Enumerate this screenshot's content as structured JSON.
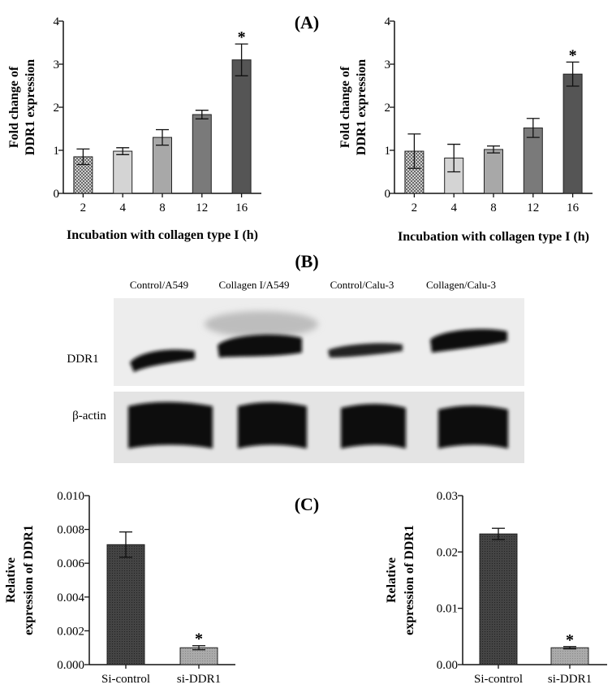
{
  "panels": {
    "A": "(A)",
    "B": "(B)",
    "C": "(C)"
  },
  "colors": {
    "bar_2h": "#9a9a9a",
    "bar_4h": "#d4d4d4",
    "bar_8h": "#a8a8a8",
    "bar_12h": "#7a7a7a",
    "bar_16h": "#555555",
    "si_control": "#3a3a3a",
    "si_ddr1": "#a6a6a6"
  },
  "western_blot": {
    "lanes": [
      "Control/A549",
      "Collagen I/A549",
      "Control/Calu-3",
      "Collagen/Calu-3"
    ],
    "rows": [
      "DDR1",
      "β-actin"
    ]
  },
  "chart_data": [
    {
      "id": "A-left",
      "type": "bar",
      "categories": [
        "2",
        "4",
        "8",
        "12",
        "16"
      ],
      "values": [
        0.85,
        0.98,
        1.3,
        1.83,
        3.1
      ],
      "errors": [
        0.18,
        0.08,
        0.18,
        0.1,
        0.37
      ],
      "significant": [
        false,
        false,
        false,
        false,
        true
      ],
      "significance_mark": "*",
      "xlabel": "Incubation with collagen type I (h)",
      "ylabel": [
        "Fold change of",
        "DDR1 expression"
      ],
      "ylim": [
        0,
        4
      ],
      "yticks": [
        0,
        1,
        2,
        3,
        4
      ],
      "ytick_labels": [
        "0",
        "1",
        "2",
        "3",
        "4"
      ],
      "bar_colors": [
        "#9a9a9a",
        "#d4d4d4",
        "#a8a8a8",
        "#7a7a7a",
        "#555555"
      ],
      "grid": false
    },
    {
      "id": "A-right",
      "type": "bar",
      "categories": [
        "2",
        "4",
        "8",
        "12",
        "16"
      ],
      "values": [
        0.98,
        0.82,
        1.02,
        1.52,
        2.77
      ],
      "errors": [
        0.4,
        0.32,
        0.08,
        0.22,
        0.28
      ],
      "significant": [
        false,
        false,
        false,
        false,
        true
      ],
      "significance_mark": "*",
      "xlabel": "Incubation with collagen type I (h)",
      "ylabel": [
        "Fold change of",
        "DDR1 expression"
      ],
      "ylim": [
        0,
        4
      ],
      "yticks": [
        0,
        1,
        2,
        3,
        4
      ],
      "ytick_labels": [
        "0",
        "1",
        "2",
        "3",
        "4"
      ],
      "bar_colors": [
        "#9a9a9a",
        "#d4d4d4",
        "#a8a8a8",
        "#7a7a7a",
        "#555555"
      ],
      "grid": false
    },
    {
      "id": "C-left",
      "type": "bar",
      "categories": [
        "Si-control",
        "si-DDR1"
      ],
      "values": [
        0.0071,
        0.001
      ],
      "errors": [
        0.00075,
        0.00012
      ],
      "significant": [
        false,
        true
      ],
      "significance_mark": "*",
      "xlabel": "",
      "ylabel": [
        "Relative",
        "expression of DDR1"
      ],
      "ylim": [
        0,
        0.01
      ],
      "yticks": [
        0,
        0.002,
        0.004,
        0.006,
        0.008,
        0.01
      ],
      "ytick_labels": [
        "0.000",
        "0.002",
        "0.004",
        "0.006",
        "0.008",
        "0.010"
      ],
      "bar_colors": [
        "#3a3a3a",
        "#a6a6a6"
      ],
      "grid": false
    },
    {
      "id": "C-right",
      "type": "bar",
      "categories": [
        "Si-control",
        "si-DDR1"
      ],
      "values": [
        0.0232,
        0.003
      ],
      "errors": [
        0.001,
        0.0002
      ],
      "significant": [
        false,
        true
      ],
      "significance_mark": "*",
      "xlabel": "",
      "ylabel": [
        "Relative",
        "expression of DDR1"
      ],
      "ylim": [
        0,
        0.03
      ],
      "yticks": [
        0,
        0.01,
        0.02,
        0.03
      ],
      "ytick_labels": [
        "0.00",
        "0.01",
        "0.02",
        "0.03"
      ],
      "bar_colors": [
        "#3a3a3a",
        "#a6a6a6"
      ],
      "grid": false
    }
  ]
}
